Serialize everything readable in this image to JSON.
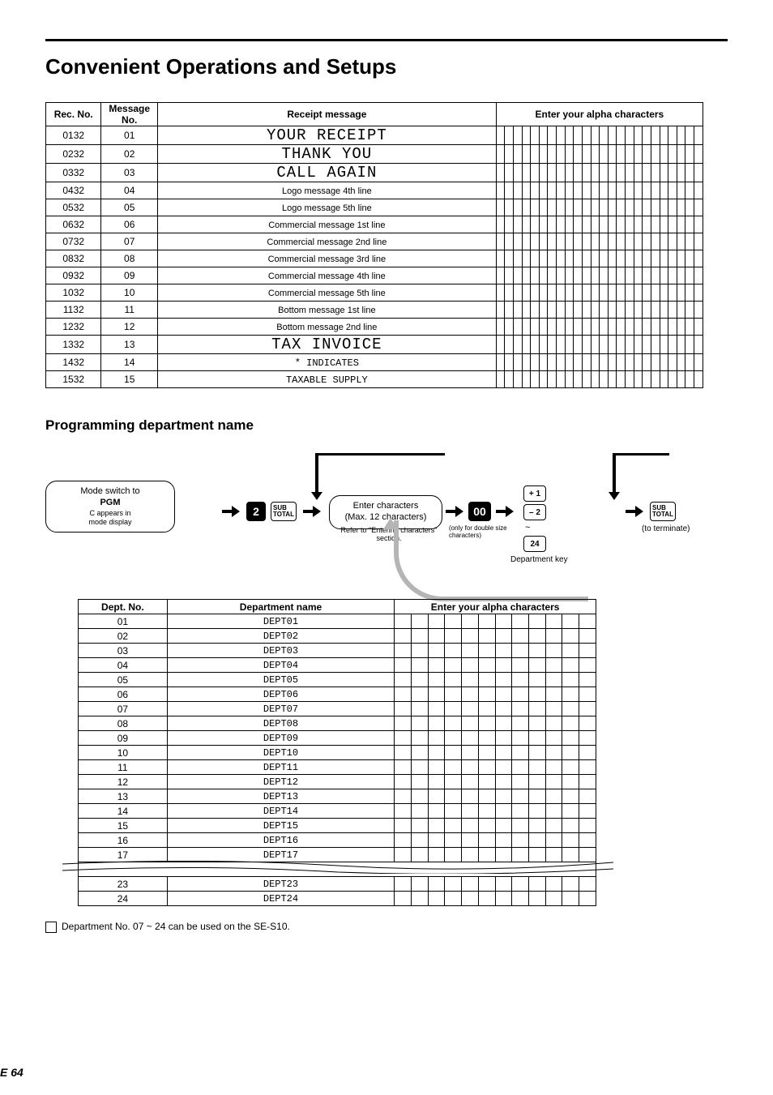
{
  "colors": {
    "text": "#000000",
    "background": "#ffffff",
    "loop_gray": "#b5b5b5"
  },
  "page": {
    "section_heading": "Convenient Operations and Setups",
    "page_number_label": "E",
    "page_number_value": "64"
  },
  "receipt_table": {
    "col_rec": "Rec. No.",
    "col_msg": "Message No.",
    "col_receipt": "Receipt message",
    "col_alpha": "Enter your alpha characters",
    "rows": [
      {
        "rec": "0132",
        "msg": "01",
        "text": "YOUR RECEIPT",
        "note": "",
        "cls": "big"
      },
      {
        "rec": "0232",
        "msg": "02",
        "text": "THANK YOU",
        "note": "",
        "cls": "big"
      },
      {
        "rec": "0332",
        "msg": "03",
        "text": "CALL AGAIN",
        "note": "",
        "cls": "big"
      },
      {
        "rec": "0432",
        "msg": "04",
        "text": "",
        "note": "Logo message 4th line",
        "cls": ""
      },
      {
        "rec": "0532",
        "msg": "05",
        "text": "",
        "note": "Logo message 5th line",
        "cls": ""
      },
      {
        "rec": "0632",
        "msg": "06",
        "text": "",
        "note": "Commercial message 1st line",
        "cls": ""
      },
      {
        "rec": "0732",
        "msg": "07",
        "text": "",
        "note": "Commercial message 2nd line",
        "cls": ""
      },
      {
        "rec": "0832",
        "msg": "08",
        "text": "",
        "note": "Commercial message 3rd line",
        "cls": ""
      },
      {
        "rec": "0932",
        "msg": "09",
        "text": "",
        "note": "Commercial message 4th line",
        "cls": ""
      },
      {
        "rec": "1032",
        "msg": "10",
        "text": "",
        "note": "Commercial message 5th line",
        "cls": ""
      },
      {
        "rec": "1132",
        "msg": "11",
        "text": "",
        "note": "Bottom message 1st line",
        "cls": ""
      },
      {
        "rec": "1232",
        "msg": "12",
        "text": "",
        "note": "Bottom message 2nd line",
        "cls": ""
      },
      {
        "rec": "1332",
        "msg": "13",
        "text": "TAX INVOICE",
        "note": "",
        "cls": "big"
      },
      {
        "rec": "1432",
        "msg": "14",
        "text": "* INDICATES",
        "note": "",
        "cls": "small"
      },
      {
        "rec": "1532",
        "msg": "15",
        "text": "TAXABLE SUPPLY",
        "note": "",
        "cls": "small"
      }
    ],
    "alpha_cell_count": 24
  },
  "flow": {
    "title": "Programming department name",
    "bubble1_l1": "Mode switch to",
    "bubble1_l2": "PGM",
    "bubble1_l3": "C appears in",
    "bubble1_l4": "mode display",
    "key_2": "2",
    "key_sub": "SUB\nTOTAL",
    "bubble2_l1": "Enter characters",
    "bubble2_l2": "(Max. 12 characters)",
    "key_00": "00",
    "key_p1": "+ 1",
    "key_m2": "– 2",
    "key_24": "24",
    "under_keys": "Department key",
    "under_subtotal": "(to terminate)",
    "under_bubble2_a": "Refer to \"Entering characters\" section.",
    "under_bubble2_b": "(only for double size characters)"
  },
  "dept_table": {
    "col1": "Dept. No.",
    "col2": "Department name",
    "col3": "Enter your alpha characters",
    "alpha_cell_count": 12,
    "rows": [
      {
        "no": "01",
        "label": "DEPT01"
      },
      {
        "no": "02",
        "label": "DEPT02"
      },
      {
        "no": "03",
        "label": "DEPT03"
      },
      {
        "no": "04",
        "label": "DEPT04"
      },
      {
        "no": "05",
        "label": "DEPT05"
      },
      {
        "no": "06",
        "label": "DEPT06"
      },
      {
        "no": "07",
        "label": "DEPT07"
      },
      {
        "no": "08",
        "label": "DEPT08"
      },
      {
        "no": "09",
        "label": "DEPT09"
      },
      {
        "no": "10",
        "label": "DEPT10"
      },
      {
        "no": "11",
        "label": "DEPT11"
      },
      {
        "no": "12",
        "label": "DEPT12"
      },
      {
        "no": "13",
        "label": "DEPT13"
      },
      {
        "no": "14",
        "label": "DEPT14"
      },
      {
        "no": "15",
        "label": "DEPT15"
      },
      {
        "no": "16",
        "label": "DEPT16"
      },
      {
        "no": "17",
        "label": "DEPT17"
      }
    ],
    "rows_after_torn": [
      {
        "no": "23",
        "label": "DEPT23"
      },
      {
        "no": "24",
        "label": "DEPT24"
      }
    ]
  },
  "footnote": "Department No. 07 ~ 24 can be used on the SE-S10."
}
